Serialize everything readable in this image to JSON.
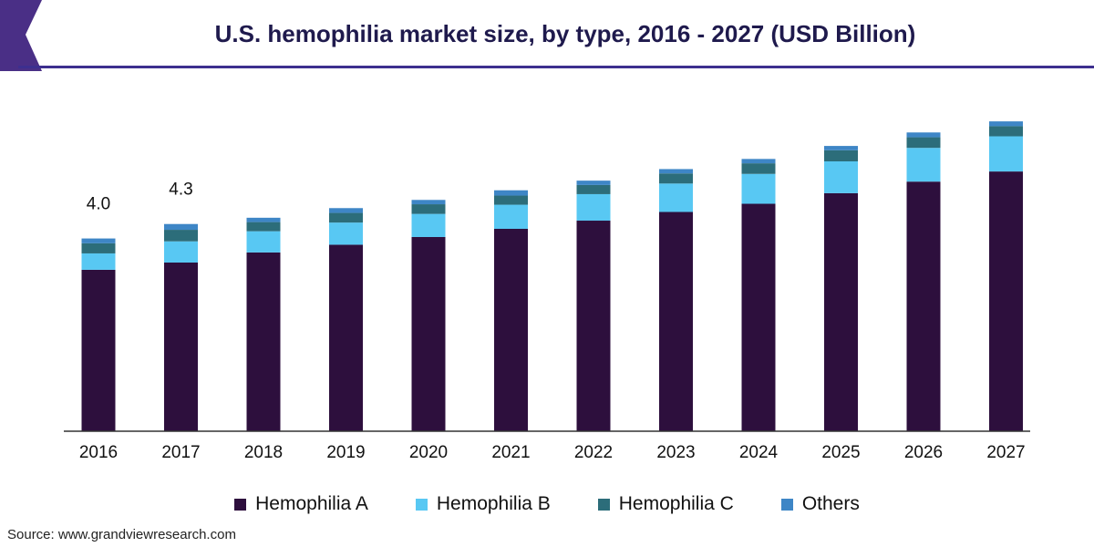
{
  "title": "U.S. hemophilia market size, by type, 2016 - 2027 (USD Billion)",
  "source": "Source: www.grandviewresearch.com",
  "colors": {
    "header_accent": "#4a2f86",
    "header_rule": "#3d2f8f",
    "axis": "#333333"
  },
  "chart_data": {
    "type": "bar",
    "stacked": true,
    "categories": [
      "2016",
      "2017",
      "2018",
      "2019",
      "2020",
      "2021",
      "2022",
      "2023",
      "2024",
      "2025",
      "2026",
      "2027"
    ],
    "series": [
      {
        "name": "Hemophilia A",
        "color": "#2d0f3d",
        "values": [
          3.35,
          3.5,
          3.71,
          3.87,
          4.03,
          4.2,
          4.37,
          4.55,
          4.72,
          4.94,
          5.18,
          5.39
        ]
      },
      {
        "name": "Hemophilia B",
        "color": "#58c8f3",
        "values": [
          0.34,
          0.44,
          0.44,
          0.46,
          0.48,
          0.5,
          0.55,
          0.59,
          0.62,
          0.66,
          0.7,
          0.73
        ]
      },
      {
        "name": "Hemophilia C",
        "color": "#2c6d7a",
        "values": [
          0.21,
          0.24,
          0.19,
          0.2,
          0.2,
          0.19,
          0.19,
          0.21,
          0.22,
          0.23,
          0.22,
          0.21
        ]
      },
      {
        "name": "Others",
        "color": "#3e86c6",
        "values": [
          0.1,
          0.12,
          0.09,
          0.1,
          0.09,
          0.11,
          0.09,
          0.09,
          0.09,
          0.09,
          0.1,
          0.1
        ]
      }
    ],
    "data_labels": [
      {
        "category": "2016",
        "text": "4.0"
      },
      {
        "category": "2017",
        "text": "4.3"
      }
    ],
    "ylim": [
      0,
      7.0
    ],
    "xlabel": "",
    "ylabel": "",
    "grid": false,
    "legend_position": "bottom"
  }
}
